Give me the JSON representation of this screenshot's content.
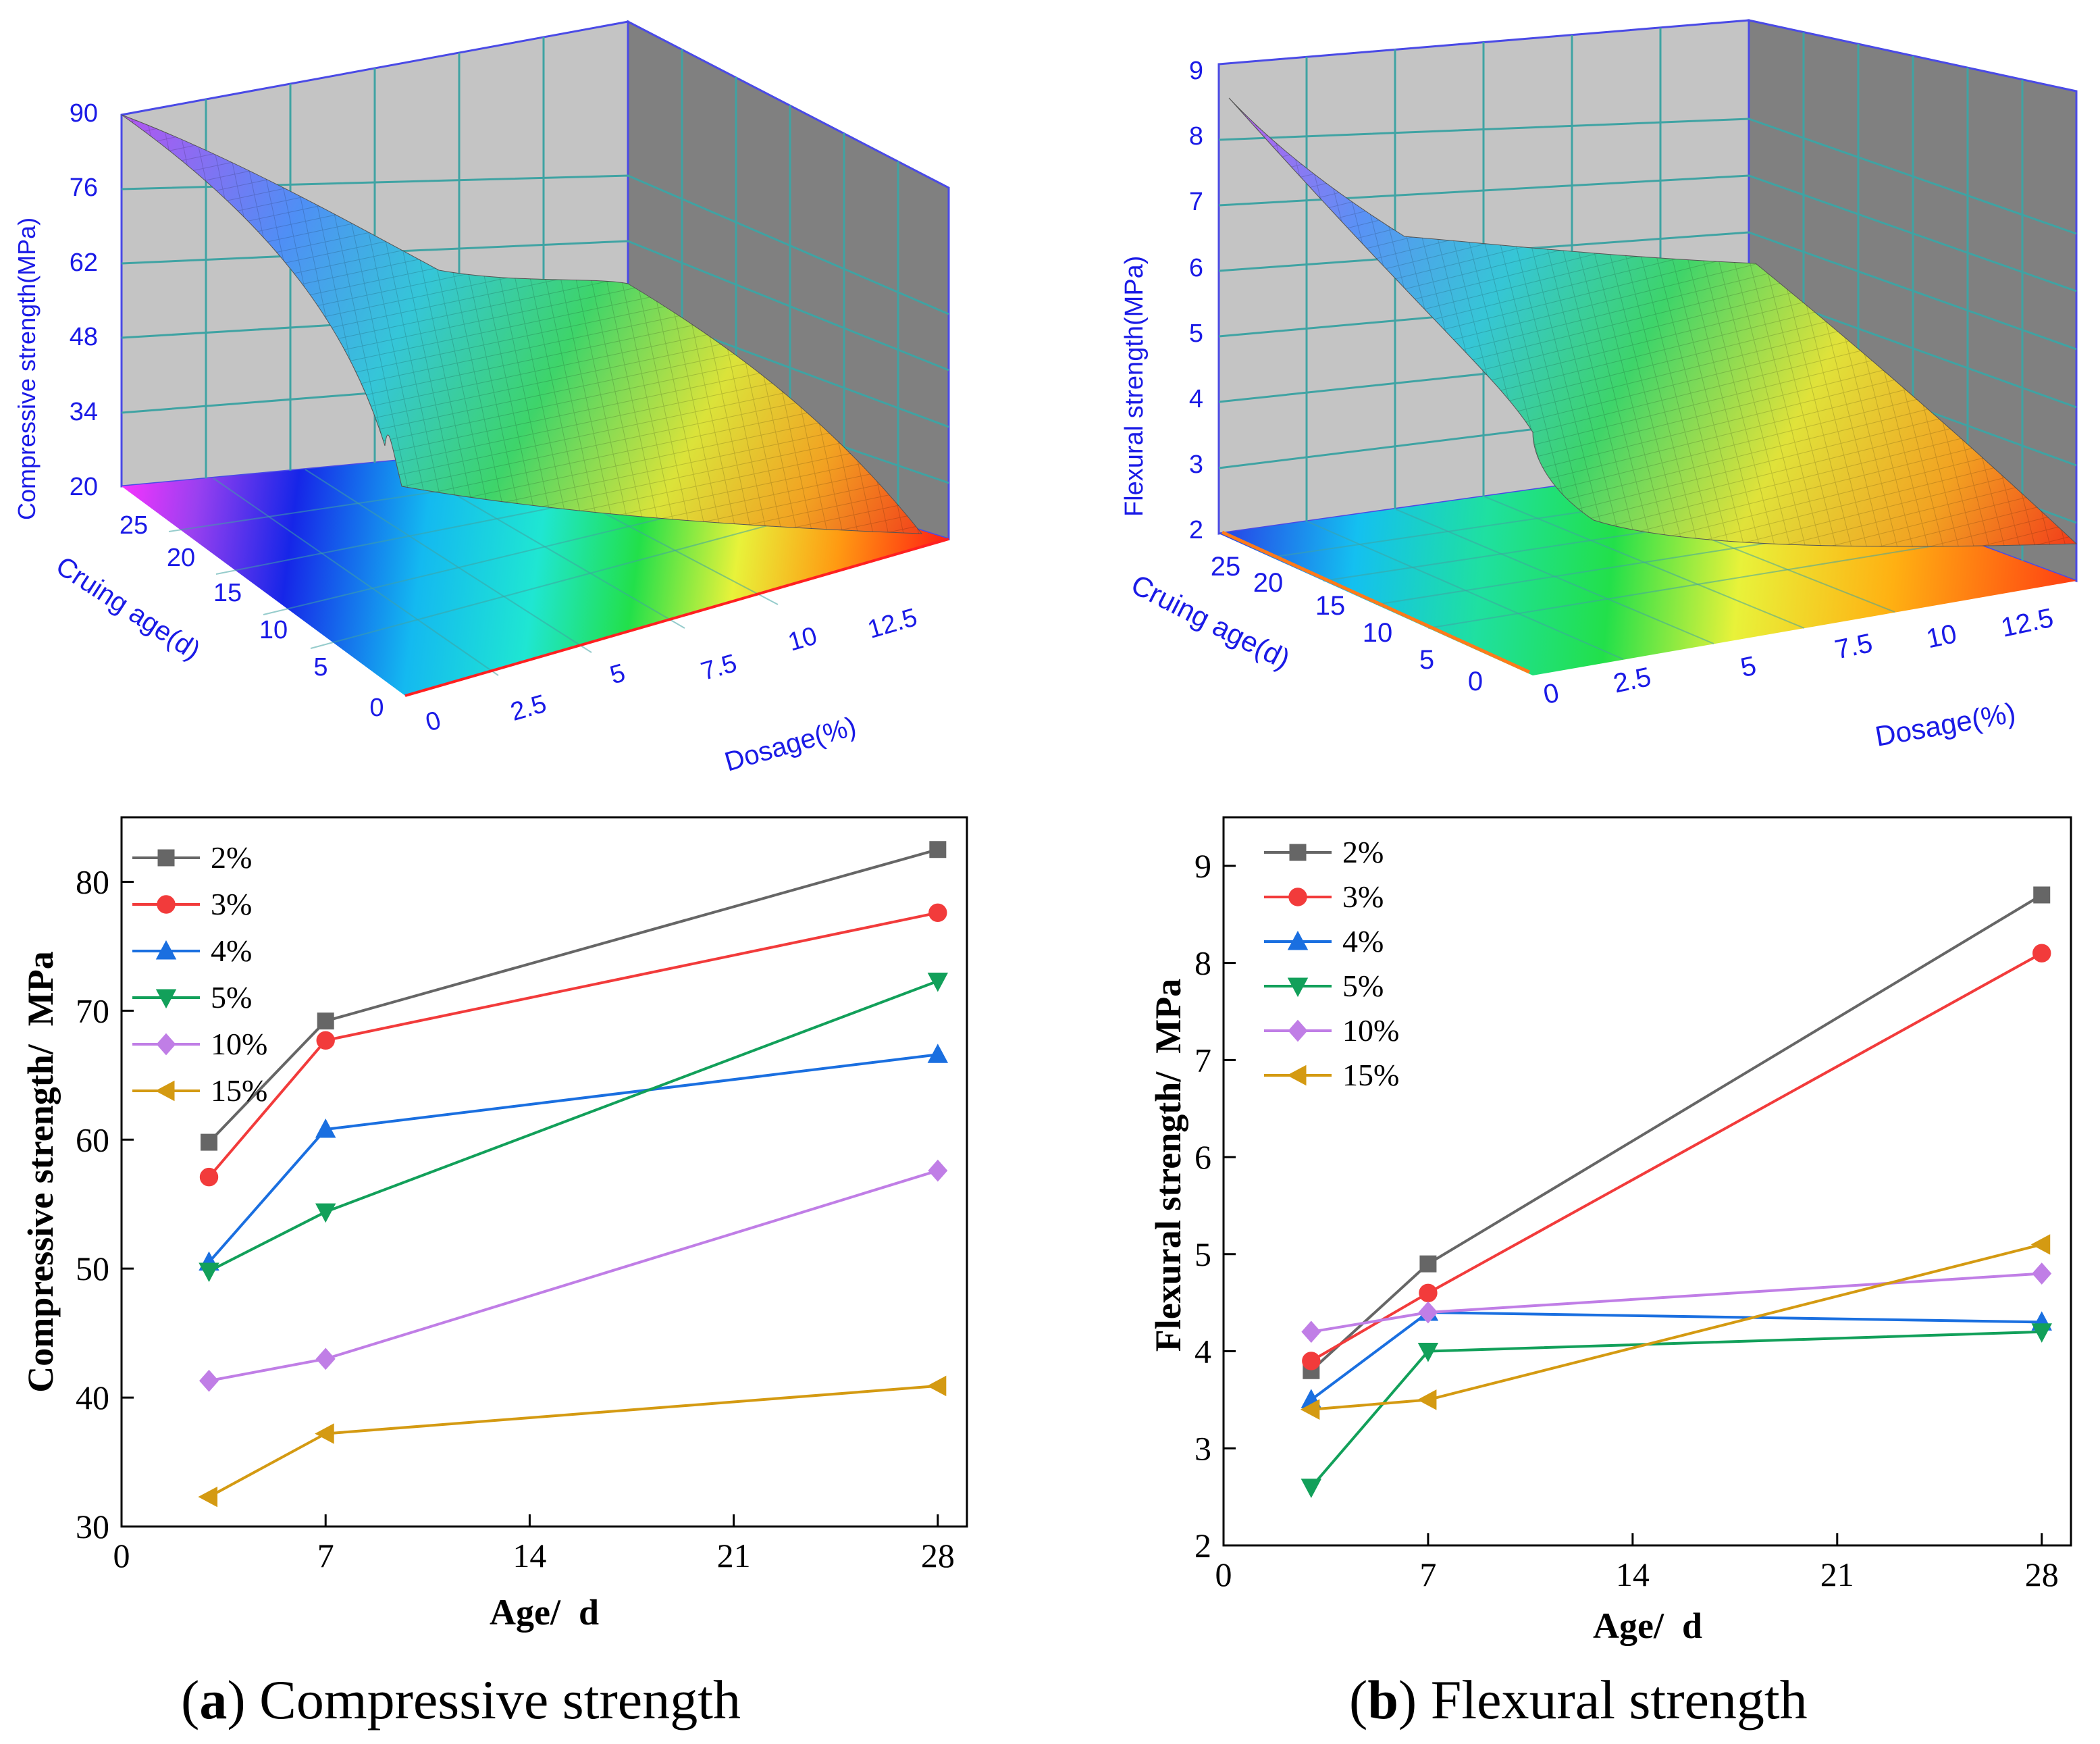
{
  "colors": {
    "2%": "#666666",
    "3%": "#f23b3b",
    "4%": "#1a6fe0",
    "5%": "#12a05a",
    "10%": "#c07ee6",
    "15%": "#d49a12",
    "axis3d": "#1a1ae6",
    "wall_back": "#c4c4c4",
    "wall_side": "#808080",
    "grid3d": "#3fa3a3"
  },
  "chart_data": [
    {
      "id": "a-3d",
      "type": "surface",
      "zlabel": "Compressive strength(MPa)",
      "ylabel": "Cruing age(d)",
      "xlabel": "Dosage(%)",
      "z_ticks": [
        "20",
        "34",
        "48",
        "62",
        "76",
        "90"
      ],
      "y_ticks": [
        "0",
        "5",
        "10",
        "15",
        "20",
        "25"
      ],
      "x_ticks": [
        "0",
        "2.5",
        "5",
        "7.5",
        "10",
        "12.5"
      ],
      "zlim": [
        20,
        90
      ]
    },
    {
      "id": "b-3d",
      "type": "surface",
      "zlabel": "Flexural strength(MPa)",
      "ylabel": "Cruing age(d)",
      "xlabel": "Dosage(%)",
      "z_ticks": [
        "2",
        "3",
        "4",
        "5",
        "6",
        "7",
        "8",
        "9"
      ],
      "y_ticks": [
        "0",
        "5",
        "10",
        "15",
        "20",
        "25"
      ],
      "x_ticks": [
        "0",
        "2.5",
        "5",
        "7.5",
        "10",
        "12.5"
      ],
      "zlim": [
        2,
        9
      ]
    },
    {
      "id": "a-line",
      "type": "line",
      "xlabel": "Age/  d",
      "ylabel": "Compressive strength/  MPa",
      "xlim": [
        0,
        29
      ],
      "ylim": [
        30,
        85
      ],
      "x_ticks": [
        0,
        7,
        14,
        21,
        28
      ],
      "y_ticks": [
        30,
        40,
        50,
        60,
        70,
        80
      ],
      "x": [
        3,
        7,
        28
      ],
      "series": [
        {
          "name": "2%",
          "marker": "square",
          "values": [
            59.8,
            69.2,
            82.5
          ]
        },
        {
          "name": "3%",
          "marker": "circle",
          "values": [
            57.1,
            67.7,
            77.6
          ]
        },
        {
          "name": "4%",
          "marker": "triangle-up",
          "values": [
            50.5,
            60.8,
            66.6
          ]
        },
        {
          "name": "5%",
          "marker": "triangle-down",
          "values": [
            49.8,
            54.4,
            72.3
          ]
        },
        {
          "name": "10%",
          "marker": "diamond",
          "values": [
            41.3,
            43.0,
            57.6
          ]
        },
        {
          "name": "15%",
          "marker": "triangle-left",
          "values": [
            32.3,
            37.2,
            40.9
          ]
        }
      ]
    },
    {
      "id": "b-line",
      "type": "line",
      "xlabel": "Age/  d",
      "ylabel": "Flexural strength/  MPa",
      "xlim": [
        0,
        29
      ],
      "ylim": [
        2,
        9.5
      ],
      "x_ticks": [
        0,
        7,
        14,
        21,
        28
      ],
      "y_ticks": [
        2,
        3,
        4,
        5,
        6,
        7,
        8,
        9
      ],
      "x": [
        3,
        7,
        28
      ],
      "series": [
        {
          "name": "2%",
          "marker": "square",
          "values": [
            3.8,
            4.9,
            8.7
          ]
        },
        {
          "name": "3%",
          "marker": "circle",
          "values": [
            3.9,
            4.6,
            8.1
          ]
        },
        {
          "name": "4%",
          "marker": "triangle-up",
          "values": [
            3.5,
            4.4,
            4.3
          ]
        },
        {
          "name": "5%",
          "marker": "triangle-down",
          "values": [
            2.6,
            4.0,
            4.2
          ]
        },
        {
          "name": "10%",
          "marker": "diamond",
          "values": [
            4.2,
            4.4,
            4.8
          ]
        },
        {
          "name": "15%",
          "marker": "triangle-left",
          "values": [
            3.4,
            3.5,
            5.1
          ]
        }
      ]
    }
  ],
  "captions": {
    "a": {
      "letter": "a",
      "text": " Compressive strength"
    },
    "b": {
      "letter": "b",
      "text": " Flexural strength"
    }
  }
}
